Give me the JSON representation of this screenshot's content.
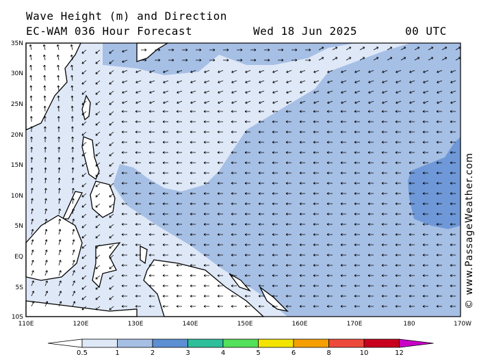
{
  "header": {
    "title": "Wave Height (m) and Direction",
    "model": "EC-WAM 036 Hour Forecast",
    "date": "Wed 18 Jun 2025",
    "time": "00 UTC"
  },
  "credit": "© www.PassageWeather.com",
  "map": {
    "lat_labels": [
      "35N",
      "30N",
      "25N",
      "20N",
      "15N",
      "10N",
      "5N",
      "EQ",
      "5S",
      "10S"
    ],
    "lon_labels": [
      "110E",
      "120E",
      "130E",
      "140E",
      "150E",
      "160E",
      "170E",
      "180",
      "170W"
    ],
    "arrow_direction": "west (east of 135E), north (west of 130E)"
  },
  "legend": {
    "labels": [
      "0.5",
      "1",
      "2",
      "3",
      "4",
      "5",
      "6",
      "8",
      "10",
      "12"
    ],
    "colors": [
      "#ffffff",
      "#dfe8f7",
      "#a6bfe5",
      "#5d8fd3",
      "#2dbf9b",
      "#53e05a",
      "#f2e400",
      "#f5a000",
      "#ee4a3c",
      "#c8001d",
      "#c800c8"
    ]
  },
  "colors": {
    "sea_light": "#dfe8f7",
    "sea_mid": "#a6bfe5",
    "sea_dark": "#6f98d8",
    "land": "#ffffff"
  }
}
